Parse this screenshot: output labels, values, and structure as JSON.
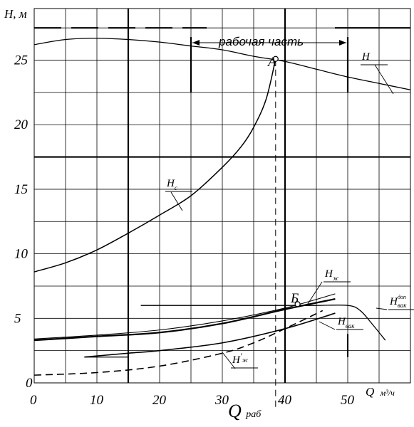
{
  "chart_data": {
    "type": "line",
    "ylabel": "H, м",
    "xlabel_prefix": "Q",
    "xlabel_unit": "м³/ч",
    "xlim": [
      0,
      60
    ],
    "ylim": [
      0,
      29
    ],
    "x_ticks": [
      0,
      10,
      20,
      30,
      40,
      50
    ],
    "y_ticks": [
      0,
      5,
      10,
      15,
      20,
      25
    ],
    "grid": true,
    "operating_range_label": "рабочая часть",
    "operating_range": [
      25,
      50
    ],
    "operating_point": {
      "label": "А",
      "x": 38.5,
      "y": 25.1
    },
    "secondary_point": {
      "label": "Б",
      "x": 42,
      "y": 6.1
    },
    "q_work_label": "Q",
    "q_work_subscript": "раб",
    "q_work_value": 38.5,
    "series": [
      {
        "name": "H",
        "kind": "pump-head",
        "x": [
          0,
          5,
          10,
          15,
          20,
          25,
          30,
          35,
          40,
          45,
          50,
          55,
          60
        ],
        "y": [
          26.2,
          26.6,
          26.7,
          26.6,
          26.4,
          26.1,
          25.8,
          25.3,
          24.9,
          24.3,
          23.7,
          23.2,
          22.7
        ]
      },
      {
        "name": "Hс",
        "label_main": "H",
        "label_sub": "с",
        "kind": "system",
        "x": [
          0,
          5,
          10,
          15,
          20,
          25,
          30,
          33,
          35,
          37,
          38.5
        ],
        "y": [
          8.6,
          9.3,
          10.3,
          11.6,
          13.0,
          14.5,
          16.7,
          18.3,
          19.8,
          22.0,
          25.1
        ]
      },
      {
        "name": "Hж",
        "label_main": "H",
        "label_sub": "ж",
        "kind": "thin",
        "x": [
          0,
          10,
          20,
          30,
          40,
          48
        ],
        "y": [
          3.4,
          3.7,
          4.1,
          4.8,
          5.8,
          6.9
        ]
      },
      {
        "name": "Hвзк",
        "label_main": "H",
        "label_sub": "вак",
        "kind": "bold",
        "x": [
          0,
          10,
          20,
          30,
          40,
          48
        ],
        "y": [
          3.3,
          3.6,
          3.9,
          4.6,
          5.7,
          6.5
        ]
      },
      {
        "name": "Hвак",
        "label_main": "H",
        "label_sub": "вак",
        "kind": "solid",
        "x": [
          8,
          15,
          20,
          30,
          40,
          48
        ],
        "y": [
          2.0,
          2.3,
          2.5,
          3.1,
          4.2,
          5.4
        ]
      },
      {
        "name": "H'ж",
        "label_main": "H",
        "label_sub": "ж",
        "label_prime": "′",
        "kind": "dashed",
        "x": [
          0,
          10,
          20,
          30,
          35,
          40,
          46
        ],
        "y": [
          0.6,
          0.8,
          1.3,
          2.3,
          3.1,
          4.2,
          5.6
        ]
      },
      {
        "name": "Hдоп_вак",
        "label_main": "H",
        "label_sub": "вак",
        "label_sup": "доп",
        "kind": "permissible",
        "x": [
          17,
          25,
          30,
          35,
          40,
          45,
          50,
          52,
          54,
          56
        ],
        "y": [
          6.0,
          6.0,
          6.0,
          6.0,
          6.0,
          6.0,
          6.0,
          5.6,
          4.5,
          3.3
        ]
      }
    ]
  }
}
